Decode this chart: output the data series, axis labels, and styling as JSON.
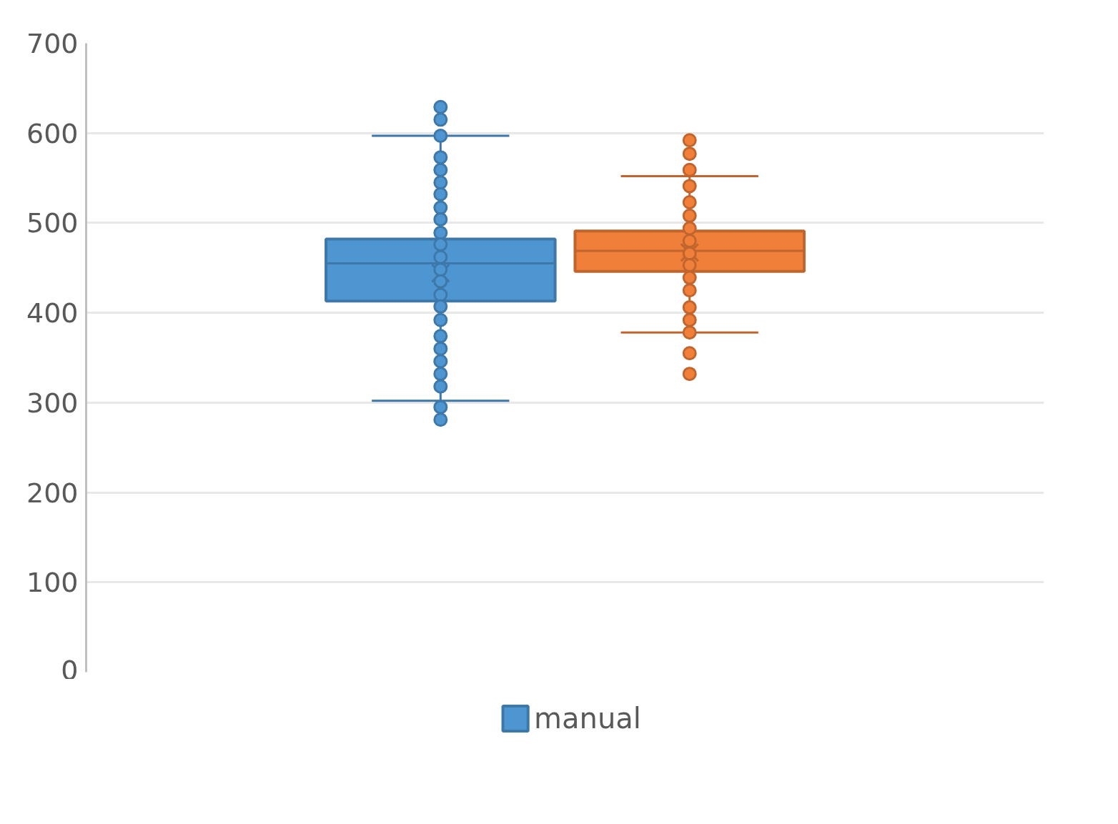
{
  "chart_data": {
    "type": "box",
    "categories": [
      null
    ],
    "series": [
      {
        "name": "manual",
        "color": "#4e96d2",
        "boxes": [
          {
            "low": 302,
            "q1": 413,
            "median": 455,
            "q3": 482,
            "high": 597,
            "mean": 444,
            "outliers": [
              629,
              615,
              295,
              281
            ]
          }
        ]
      },
      {
        "color": "#f07f3a",
        "boxes": [
          {
            "low": 378,
            "q1": 446,
            "median": 469,
            "q3": 491,
            "high": 552,
            "mean": 467,
            "outliers": [
              592,
              577,
              559,
              355,
              332
            ]
          }
        ]
      },
      {
        "type": "scatter",
        "color": "#4e96d2",
        "x": [
          null,
          null,
          null,
          null,
          null,
          null,
          null,
          null,
          null,
          null,
          null,
          null,
          null,
          null,
          null,
          null,
          null,
          null,
          null,
          null
        ],
        "values": [
          597,
          573,
          559,
          545,
          532,
          517,
          504,
          489,
          476,
          462,
          448,
          435,
          420,
          407,
          392,
          374,
          360,
          346,
          332,
          318
        ]
      },
      {
        "type": "scatter",
        "color": "#f07f3a",
        "x": [
          null,
          null,
          null,
          null,
          null,
          null,
          null,
          null,
          null,
          null,
          null,
          null
        ],
        "values": [
          541,
          523,
          508,
          494,
          480,
          466,
          453,
          439,
          425,
          406,
          392,
          378
        ]
      }
    ],
    "ylim": [
      0,
      700
    ],
    "yticks": [
      0,
      100,
      200,
      300,
      400,
      500,
      600,
      700
    ],
    "grid": "y",
    "legend": "bottom",
    "marker": "circle"
  }
}
